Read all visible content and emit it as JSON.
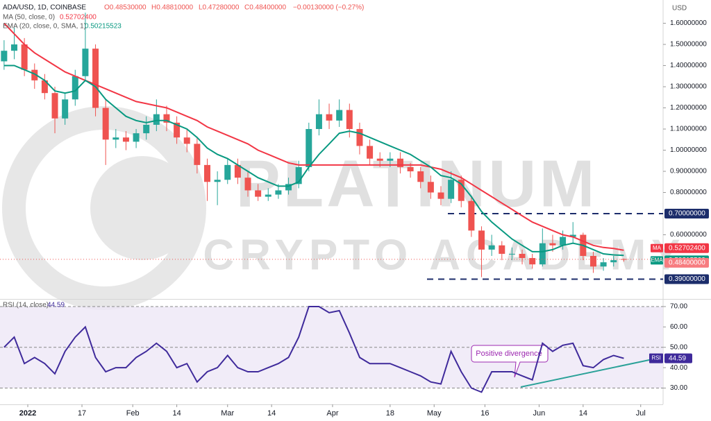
{
  "header": {
    "symbol": "ADA/USD, 1D, COINBASE",
    "ohlc": [
      "O0.48530000",
      "H0.48810000",
      "L0.47280000",
      "C0.48400000"
    ],
    "change": "−0.00130000 (−0.27%)"
  },
  "chart_data": [
    {
      "type": "candlestick",
      "currency": "USD",
      "x": [
        "2021-12-25",
        "2021-12-28",
        "2021-12-31",
        "2022-01-03",
        "2022-01-06",
        "2022-01-09",
        "2022-01-12",
        "2022-01-15",
        "2022-01-18",
        "2022-01-21",
        "2022-01-24",
        "2022-01-27",
        "2022-01-30",
        "2022-02-02",
        "2022-02-05",
        "2022-02-08",
        "2022-02-11",
        "2022-02-14",
        "2022-02-17",
        "2022-02-20",
        "2022-02-23",
        "2022-02-26",
        "2022-03-01",
        "2022-03-04",
        "2022-03-07",
        "2022-03-10",
        "2022-03-13",
        "2022-03-16",
        "2022-03-19",
        "2022-03-22",
        "2022-03-25",
        "2022-03-28",
        "2022-03-31",
        "2022-04-03",
        "2022-04-06",
        "2022-04-09",
        "2022-04-12",
        "2022-04-15",
        "2022-04-18",
        "2022-04-21",
        "2022-04-24",
        "2022-04-27",
        "2022-04-30",
        "2022-05-03",
        "2022-05-06",
        "2022-05-09",
        "2022-05-12",
        "2022-05-15",
        "2022-05-18",
        "2022-05-21",
        "2022-05-24",
        "2022-05-27",
        "2022-05-30",
        "2022-06-02",
        "2022-06-05",
        "2022-06-08",
        "2022-06-11",
        "2022-06-14",
        "2022-06-17",
        "2022-06-20",
        "2022-06-23",
        "2022-06-26"
      ],
      "open": [
        1.42,
        1.47,
        1.5,
        1.38,
        1.33,
        1.27,
        1.15,
        1.24,
        1.35,
        1.48,
        1.2,
        1.05,
        1.06,
        1.04,
        1.08,
        1.12,
        1.17,
        1.13,
        1.06,
        1.03,
        0.93,
        0.85,
        0.86,
        0.93,
        0.87,
        0.81,
        0.78,
        0.79,
        0.81,
        0.84,
        0.92,
        1.1,
        1.17,
        1.14,
        1.19,
        1.1,
        1.02,
        0.96,
        0.95,
        0.96,
        0.92,
        0.9,
        0.85,
        0.8,
        0.77,
        0.86,
        0.76,
        0.62,
        0.53,
        0.55,
        0.51,
        0.51,
        0.49,
        0.46,
        0.56,
        0.55,
        0.59,
        0.6,
        0.5,
        0.45,
        0.47,
        0.4853
      ],
      "high": [
        1.52,
        1.58,
        1.53,
        1.41,
        1.36,
        1.3,
        1.27,
        1.38,
        1.65,
        1.5,
        1.24,
        1.1,
        1.09,
        1.1,
        1.16,
        1.24,
        1.21,
        1.16,
        1.1,
        1.06,
        0.96,
        0.9,
        0.96,
        0.96,
        0.9,
        0.84,
        0.82,
        0.84,
        0.87,
        0.95,
        1.13,
        1.24,
        1.22,
        1.24,
        1.22,
        1.13,
        1.05,
        0.99,
        0.99,
        0.99,
        0.94,
        0.92,
        0.88,
        0.83,
        0.9,
        0.88,
        0.78,
        0.64,
        0.6,
        0.57,
        0.54,
        0.53,
        0.51,
        0.63,
        0.6,
        0.62,
        0.66,
        0.61,
        0.52,
        0.49,
        0.5,
        0.4881
      ],
      "low": [
        1.38,
        1.43,
        1.35,
        1.29,
        1.24,
        1.08,
        1.12,
        1.21,
        1.33,
        1.16,
        0.93,
        1.01,
        1.0,
        1.01,
        1.05,
        1.09,
        1.09,
        1.03,
        0.99,
        0.89,
        0.76,
        0.74,
        0.84,
        0.84,
        0.78,
        0.76,
        0.76,
        0.77,
        0.79,
        0.82,
        0.9,
        1.07,
        1.1,
        1.11,
        1.06,
        0.98,
        0.93,
        0.92,
        0.92,
        0.89,
        0.87,
        0.82,
        0.77,
        0.74,
        0.75,
        0.73,
        0.59,
        0.4,
        0.5,
        0.48,
        0.48,
        0.46,
        0.44,
        0.45,
        0.52,
        0.53,
        0.56,
        0.48,
        0.42,
        0.43,
        0.45,
        0.4728
      ],
      "close": [
        1.47,
        1.5,
        1.38,
        1.33,
        1.27,
        1.15,
        1.24,
        1.35,
        1.48,
        1.2,
        1.05,
        1.06,
        1.04,
        1.08,
        1.12,
        1.17,
        1.13,
        1.06,
        1.03,
        0.93,
        0.85,
        0.86,
        0.93,
        0.87,
        0.81,
        0.78,
        0.79,
        0.81,
        0.84,
        0.92,
        1.1,
        1.17,
        1.14,
        1.19,
        1.1,
        1.02,
        0.96,
        0.95,
        0.96,
        0.92,
        0.9,
        0.85,
        0.8,
        0.77,
        0.86,
        0.76,
        0.62,
        0.53,
        0.55,
        0.51,
        0.51,
        0.49,
        0.46,
        0.56,
        0.55,
        0.59,
        0.6,
        0.5,
        0.45,
        0.47,
        0.48,
        0.484
      ],
      "up_color": "#26a69a",
      "down_color": "#ef5350",
      "series": [
        {
          "name": "MA (50, close, 0)",
          "tag": "MA",
          "last_label": "0.52702400",
          "color": "#f23645",
          "values": [
            1.6,
            1.55,
            1.5,
            1.46,
            1.43,
            1.4,
            1.37,
            1.35,
            1.33,
            1.31,
            1.29,
            1.27,
            1.25,
            1.23,
            1.22,
            1.21,
            1.2,
            1.18,
            1.16,
            1.14,
            1.11,
            1.09,
            1.07,
            1.05,
            1.03,
            1.0,
            0.98,
            0.96,
            0.94,
            0.93,
            0.93,
            0.93,
            0.93,
            0.93,
            0.93,
            0.93,
            0.93,
            0.93,
            0.93,
            0.93,
            0.93,
            0.93,
            0.92,
            0.91,
            0.89,
            0.87,
            0.84,
            0.81,
            0.78,
            0.75,
            0.72,
            0.69,
            0.66,
            0.64,
            0.62,
            0.6,
            0.59,
            0.57,
            0.55,
            0.54,
            0.535,
            0.527024
          ]
        },
        {
          "name": "EMA (20, close, 0, SMA, 1)",
          "tag": "EMA",
          "last_label": "0.50215523",
          "color": "#089981",
          "values": [
            1.4,
            1.4,
            1.38,
            1.36,
            1.33,
            1.28,
            1.27,
            1.28,
            1.33,
            1.3,
            1.24,
            1.2,
            1.16,
            1.14,
            1.13,
            1.14,
            1.14,
            1.12,
            1.1,
            1.06,
            1.01,
            0.98,
            0.96,
            0.93,
            0.9,
            0.87,
            0.85,
            0.83,
            0.83,
            0.85,
            0.92,
            0.98,
            1.03,
            1.08,
            1.09,
            1.08,
            1.06,
            1.04,
            1.02,
            1.0,
            0.98,
            0.95,
            0.92,
            0.88,
            0.87,
            0.84,
            0.78,
            0.71,
            0.66,
            0.62,
            0.58,
            0.55,
            0.52,
            0.52,
            0.53,
            0.55,
            0.56,
            0.55,
            0.53,
            0.51,
            0.505,
            0.50215523
          ]
        }
      ],
      "last_price": {
        "value": 0.484,
        "label": "0.48400000"
      },
      "levels": [
        {
          "value": 0.7,
          "label": "0.70000000"
        },
        {
          "value": 0.39,
          "label": "0.39000000"
        }
      ],
      "ylim": [
        0.3,
        1.71
      ],
      "yticks": [
        {
          "value": 0.6,
          "label": "0.60000000"
        },
        {
          "value": 0.8,
          "label": "0.80000000"
        },
        {
          "value": 0.9,
          "label": "0.90000000"
        },
        {
          "value": 1.0,
          "label": "1.00000000"
        },
        {
          "value": 1.1,
          "label": "1.10000000"
        },
        {
          "value": 1.2,
          "label": "1.20000000"
        },
        {
          "value": 1.3,
          "label": "1.30000000"
        },
        {
          "value": 1.4,
          "label": "1.40000000"
        },
        {
          "value": 1.5,
          "label": "1.50000000"
        },
        {
          "value": 1.6,
          "label": "1.60000000"
        }
      ],
      "xlim": [
        "2021-12-24",
        "2022-07-07"
      ],
      "xticks": [
        {
          "value": "2022-01-01",
          "label": "2022"
        },
        {
          "value": "2022-01-17",
          "label": "17"
        },
        {
          "value": "2022-02-01",
          "label": "Feb"
        },
        {
          "value": "2022-02-14",
          "label": "14"
        },
        {
          "value": "2022-03-01",
          "label": "Mar"
        },
        {
          "value": "2022-03-14",
          "label": "14"
        },
        {
          "value": "2022-04-01",
          "label": "Apr"
        },
        {
          "value": "2022-04-18",
          "label": "18"
        },
        {
          "value": "2022-05-01",
          "label": "May"
        },
        {
          "value": "2022-05-16",
          "label": "16"
        },
        {
          "value": "2022-06-01",
          "label": "Jun"
        },
        {
          "value": "2022-06-14",
          "label": "14"
        },
        {
          "value": "2022-07-01",
          "label": "Jul"
        }
      ],
      "watermark": [
        "PLATINUM",
        "CRYPTO ACADEMY"
      ]
    },
    {
      "type": "line",
      "name": "RSI (14, close)",
      "tag": "RSI",
      "color": "#3f2a9b",
      "values": [
        50,
        55,
        42,
        45,
        42,
        37,
        48,
        55,
        60,
        45,
        38,
        40,
        40,
        45,
        48,
        52,
        48,
        40,
        42,
        33,
        38,
        40,
        46,
        40,
        38,
        38,
        40,
        42,
        45,
        55,
        70,
        70,
        67,
        68,
        57,
        45,
        42,
        42,
        42,
        40,
        38,
        36,
        33,
        32,
        48,
        38,
        30,
        28,
        38,
        38,
        38,
        36,
        34,
        52,
        48,
        51,
        52,
        41,
        40,
        44,
        46,
        44.59
      ],
      "ylim": [
        22,
        73.4
      ],
      "yticks": [
        {
          "value": 30,
          "label": "30.00"
        },
        {
          "value": 40,
          "label": "40.00"
        },
        {
          "value": 50,
          "label": "50.00"
        },
        {
          "value": 60,
          "label": "60.00"
        },
        {
          "value": 70,
          "label": "70.00"
        }
      ],
      "band": [
        30,
        70
      ],
      "midline": 50,
      "annotation": "Positive divergence"
    }
  ]
}
